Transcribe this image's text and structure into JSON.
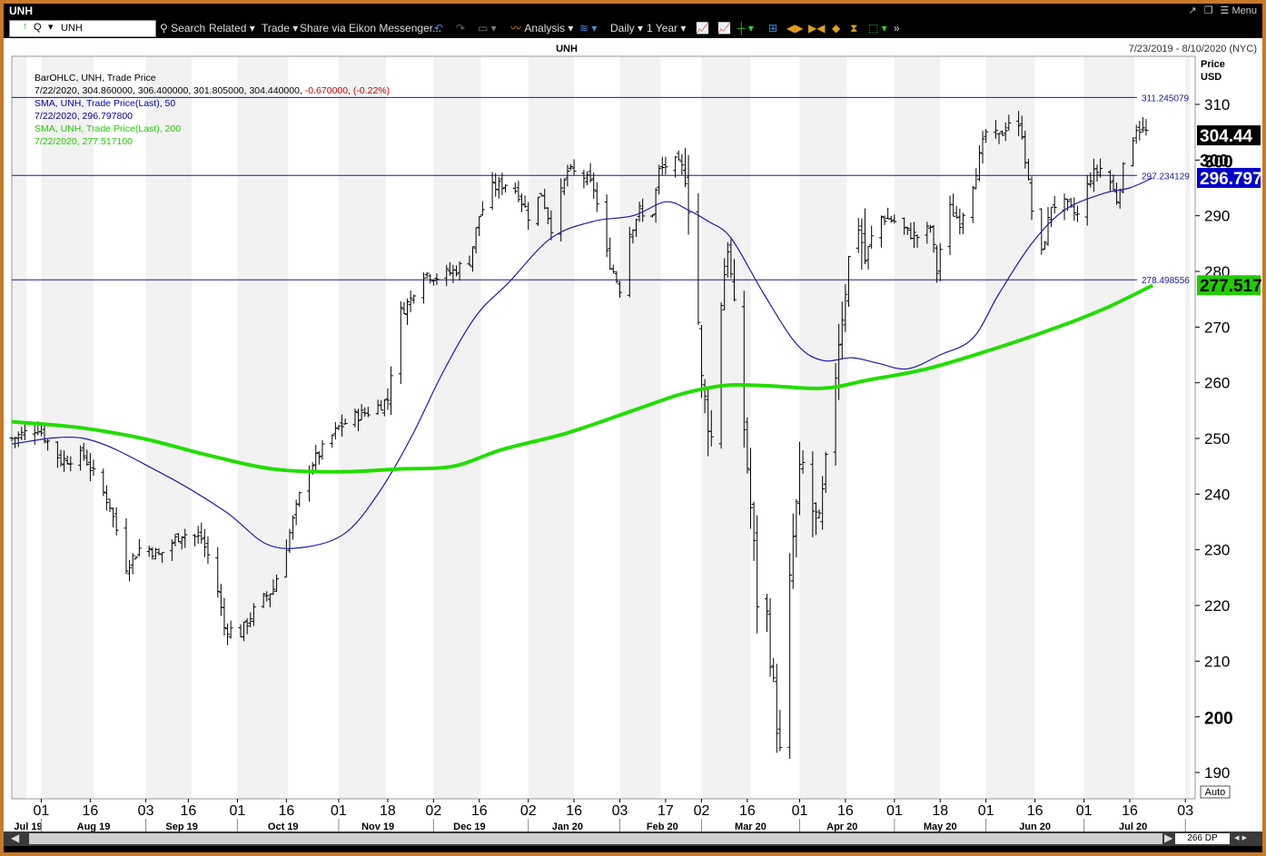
{
  "window": {
    "title": "UNH",
    "menu_label": "Menu"
  },
  "toolbar": {
    "ric_value": "UNH",
    "q_label": "Q",
    "search_label": "Search",
    "related_label": "Related",
    "trade_label": "Trade",
    "share_label": "Share via Eikon Messenger...",
    "analysis_label": "Analysis",
    "interval_label": "Daily",
    "range_label": "1 Year"
  },
  "chart_data": {
    "type": "line",
    "title": "UNH",
    "date_range": "7/23/2019 - 8/10/2020 (NYC)",
    "ylabel": "Price",
    "yunit": "USD",
    "ylim": [
      186,
      315
    ],
    "yticks": [
      190,
      200,
      210,
      220,
      230,
      240,
      250,
      260,
      270,
      280,
      290,
      300,
      310
    ],
    "auto_label": "Auto",
    "dp_label": "266 DP",
    "legend": [
      {
        "text": "BarOHLC, UNH, Trade Price",
        "color": "#000000"
      },
      {
        "text": "7/22/2020, 304.860000, 306.400000, 301.805000, 304.440000,",
        "color": "#000000",
        "suffix": "-0.670000, (-0.22%)",
        "suffix_color": "#cc0000"
      },
      {
        "text": "SMA, UNH, Trade Price(Last),  50",
        "color": "#0000aa"
      },
      {
        "text": "7/22/2020, 296.797800",
        "color": "#0000aa"
      },
      {
        "text": "SMA, UNH, Trade Price(Last),  200",
        "color": "#22cc00"
      },
      {
        "text": "7/22/2020, 277.517100",
        "color": "#22cc00"
      }
    ],
    "hlines": [
      {
        "value": 311.245079,
        "label": "311.245079"
      },
      {
        "value": 297.234129,
        "label": "297.234129"
      },
      {
        "value": 278.498556,
        "label": "278.498556"
      }
    ],
    "badges": [
      {
        "value": 304.44,
        "label": "304.44",
        "bg": "#000000",
        "fg": "#ffffff"
      },
      {
        "value": 300,
        "label": "300",
        "bg": "#ffffff",
        "fg": "#000000"
      },
      {
        "value": 296.7978,
        "label": "296.797",
        "bg": "#0000cc",
        "fg": "#ffffff"
      },
      {
        "value": 277.5171,
        "label": "277.517",
        "bg": "#22cc00",
        "fg": "#000000"
      }
    ],
    "x_day_ticks": [
      {
        "day": 9,
        "label": "01"
      },
      {
        "day": 24,
        "label": "16"
      },
      {
        "day": 41,
        "label": "03"
      },
      {
        "day": 54,
        "label": "16"
      },
      {
        "day": 69,
        "label": "01"
      },
      {
        "day": 84,
        "label": "16"
      },
      {
        "day": 100,
        "label": "01"
      },
      {
        "day": 115,
        "label": "18"
      },
      {
        "day": 129,
        "label": "02"
      },
      {
        "day": 143,
        "label": "16"
      },
      {
        "day": 158,
        "label": "02"
      },
      {
        "day": 172,
        "label": "16"
      },
      {
        "day": 186,
        "label": "03"
      },
      {
        "day": 200,
        "label": "17"
      },
      {
        "day": 211,
        "label": "02"
      },
      {
        "day": 225,
        "label": "16"
      },
      {
        "day": 241,
        "label": "01"
      },
      {
        "day": 255,
        "label": "16"
      },
      {
        "day": 270,
        "label": "01"
      },
      {
        "day": 284,
        "label": "18"
      },
      {
        "day": 298,
        "label": "01"
      },
      {
        "day": 313,
        "label": "16"
      },
      {
        "day": 328,
        "label": "01"
      },
      {
        "day": 342,
        "label": "16"
      },
      {
        "day": 359,
        "label": "03"
      }
    ],
    "x_month_labels": [
      {
        "day": 0,
        "label": "Jul 19"
      },
      {
        "day": 25,
        "label": "Aug 19"
      },
      {
        "day": 52,
        "label": "Sep 19"
      },
      {
        "day": 83,
        "label": "Oct 19"
      },
      {
        "day": 112,
        "label": "Nov 19"
      },
      {
        "day": 140,
        "label": "Dec 19"
      },
      {
        "day": 170,
        "label": "Jan 20"
      },
      {
        "day": 199,
        "label": "Feb 20"
      },
      {
        "day": 226,
        "label": "Mar 20"
      },
      {
        "day": 254,
        "label": "Apr 20"
      },
      {
        "day": 284,
        "label": "May 20"
      },
      {
        "day": 313,
        "label": "Jun 20"
      },
      {
        "day": 343,
        "label": "Jul 20"
      }
    ],
    "anchors": [
      {
        "day": 0,
        "close": 250
      },
      {
        "day": 8,
        "close": 252
      },
      {
        "day": 15,
        "close": 246
      },
      {
        "day": 22,
        "close": 247
      },
      {
        "day": 30,
        "close": 238
      },
      {
        "day": 35,
        "close": 227
      },
      {
        "day": 40,
        "close": 231
      },
      {
        "day": 45,
        "close": 229
      },
      {
        "day": 52,
        "close": 233
      },
      {
        "day": 58,
        "close": 232
      },
      {
        "day": 62,
        "close": 226
      },
      {
        "day": 65,
        "close": 216
      },
      {
        "day": 70,
        "close": 215
      },
      {
        "day": 75,
        "close": 220
      },
      {
        "day": 80,
        "close": 223
      },
      {
        "day": 85,
        "close": 233
      },
      {
        "day": 90,
        "close": 244
      },
      {
        "day": 95,
        "close": 248
      },
      {
        "day": 100,
        "close": 252
      },
      {
        "day": 105,
        "close": 254
      },
      {
        "day": 110,
        "close": 255
      },
      {
        "day": 115,
        "close": 257
      },
      {
        "day": 118,
        "close": 272
      },
      {
        "day": 122,
        "close": 275
      },
      {
        "day": 125,
        "close": 280
      },
      {
        "day": 130,
        "close": 279
      },
      {
        "day": 135,
        "close": 280
      },
      {
        "day": 140,
        "close": 282
      },
      {
        "day": 143,
        "close": 290
      },
      {
        "day": 147,
        "close": 295
      },
      {
        "day": 152,
        "close": 296
      },
      {
        "day": 155,
        "close": 294
      },
      {
        "day": 158,
        "close": 290
      },
      {
        "day": 162,
        "close": 294
      },
      {
        "day": 165,
        "close": 288
      },
      {
        "day": 170,
        "close": 298
      },
      {
        "day": 175,
        "close": 297
      },
      {
        "day": 178,
        "close": 295
      },
      {
        "day": 182,
        "close": 283
      },
      {
        "day": 186,
        "close": 277
      },
      {
        "day": 189,
        "close": 287
      },
      {
        "day": 192,
        "close": 291
      },
      {
        "day": 195,
        "close": 287
      },
      {
        "day": 198,
        "close": 298
      },
      {
        "day": 202,
        "close": 300
      },
      {
        "day": 206,
        "close": 298
      },
      {
        "day": 209,
        "close": 282
      },
      {
        "day": 211,
        "close": 260
      },
      {
        "day": 214,
        "close": 250
      },
      {
        "day": 217,
        "close": 275
      },
      {
        "day": 219,
        "close": 285
      },
      {
        "day": 222,
        "close": 266
      },
      {
        "day": 225,
        "close": 245
      },
      {
        "day": 227,
        "close": 230
      },
      {
        "day": 229,
        "close": 212
      },
      {
        "day": 231,
        "close": 218
      },
      {
        "day": 233,
        "close": 205
      },
      {
        "day": 235,
        "close": 193
      },
      {
        "day": 237,
        "close": 215
      },
      {
        "day": 239,
        "close": 232
      },
      {
        "day": 241,
        "close": 243
      },
      {
        "day": 243,
        "close": 247
      },
      {
        "day": 245,
        "close": 237
      },
      {
        "day": 247,
        "close": 234
      },
      {
        "day": 250,
        "close": 250
      },
      {
        "day": 253,
        "close": 268
      },
      {
        "day": 256,
        "close": 282
      },
      {
        "day": 258,
        "close": 292
      },
      {
        "day": 261,
        "close": 282
      },
      {
        "day": 265,
        "close": 290
      },
      {
        "day": 270,
        "close": 289
      },
      {
        "day": 274,
        "close": 287
      },
      {
        "day": 278,
        "close": 286
      },
      {
        "day": 281,
        "close": 288
      },
      {
        "day": 283,
        "close": 280
      },
      {
        "day": 286,
        "close": 292
      },
      {
        "day": 290,
        "close": 289
      },
      {
        "day": 294,
        "close": 296
      },
      {
        "day": 298,
        "close": 305
      },
      {
        "day": 302,
        "close": 304
      },
      {
        "day": 305,
        "close": 307
      },
      {
        "day": 309,
        "close": 305
      },
      {
        "day": 312,
        "close": 291
      },
      {
        "day": 315,
        "close": 283
      },
      {
        "day": 318,
        "close": 292
      },
      {
        "day": 322,
        "close": 292
      },
      {
        "day": 326,
        "close": 290
      },
      {
        "day": 330,
        "close": 297
      },
      {
        "day": 334,
        "close": 299
      },
      {
        "day": 338,
        "close": 293
      },
      {
        "day": 341,
        "close": 301
      },
      {
        "day": 344,
        "close": 306
      },
      {
        "day": 347,
        "close": 305
      },
      {
        "day": 349,
        "close": 304.44
      }
    ],
    "sma50": [
      {
        "day": 0,
        "value": 249
      },
      {
        "day": 22,
        "value": 250
      },
      {
        "day": 45,
        "value": 244
      },
      {
        "day": 65,
        "value": 237
      },
      {
        "day": 78,
        "value": 231
      },
      {
        "day": 90,
        "value": 230.5
      },
      {
        "day": 102,
        "value": 233
      },
      {
        "day": 112,
        "value": 240
      },
      {
        "day": 122,
        "value": 250
      },
      {
        "day": 132,
        "value": 262
      },
      {
        "day": 142,
        "value": 272
      },
      {
        "day": 152,
        "value": 278
      },
      {
        "day": 165,
        "value": 286
      },
      {
        "day": 178,
        "value": 289
      },
      {
        "day": 190,
        "value": 290
      },
      {
        "day": 200,
        "value": 292.5
      },
      {
        "day": 207,
        "value": 291
      },
      {
        "day": 213,
        "value": 289
      },
      {
        "day": 220,
        "value": 286
      },
      {
        "day": 230,
        "value": 276
      },
      {
        "day": 240,
        "value": 267
      },
      {
        "day": 248,
        "value": 264
      },
      {
        "day": 257,
        "value": 264.5
      },
      {
        "day": 265,
        "value": 263.5
      },
      {
        "day": 274,
        "value": 262.5
      },
      {
        "day": 284,
        "value": 265
      },
      {
        "day": 294,
        "value": 268
      },
      {
        "day": 302,
        "value": 276
      },
      {
        "day": 312,
        "value": 285
      },
      {
        "day": 322,
        "value": 291
      },
      {
        "day": 334,
        "value": 294
      },
      {
        "day": 342,
        "value": 295
      },
      {
        "day": 349,
        "value": 296.8
      }
    ],
    "sma200": [
      {
        "day": 0,
        "value": 253
      },
      {
        "day": 20,
        "value": 252
      },
      {
        "day": 40,
        "value": 250
      },
      {
        "day": 60,
        "value": 247
      },
      {
        "day": 80,
        "value": 244.5
      },
      {
        "day": 100,
        "value": 244
      },
      {
        "day": 118,
        "value": 244.5
      },
      {
        "day": 135,
        "value": 245
      },
      {
        "day": 150,
        "value": 248
      },
      {
        "day": 170,
        "value": 251
      },
      {
        "day": 190,
        "value": 255
      },
      {
        "day": 205,
        "value": 258
      },
      {
        "day": 218,
        "value": 259.5
      },
      {
        "day": 230,
        "value": 259.5
      },
      {
        "day": 248,
        "value": 259
      },
      {
        "day": 262,
        "value": 260.5
      },
      {
        "day": 280,
        "value": 262.5
      },
      {
        "day": 300,
        "value": 266
      },
      {
        "day": 320,
        "value": 270
      },
      {
        "day": 335,
        "value": 273.5
      },
      {
        "day": 349,
        "value": 277.5
      }
    ]
  }
}
